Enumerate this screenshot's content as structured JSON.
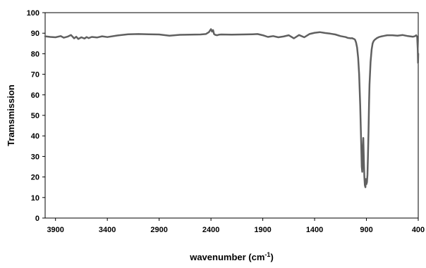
{
  "chart_data": {
    "type": "line",
    "title": "",
    "xlabel": "wavenumber (cm",
    "xlabel_sup": "-1",
    "xlabel_close": ")",
    "ylabel": "Tramsmission",
    "xlim": [
      4000,
      400
    ],
    "x_reversed": true,
    "ylim": [
      0,
      100
    ],
    "x_ticks": [
      3900,
      3400,
      2900,
      2400,
      1900,
      1400,
      900,
      400
    ],
    "y_ticks": [
      0,
      10,
      20,
      30,
      40,
      50,
      60,
      70,
      80,
      90,
      100
    ],
    "grid": false,
    "legend": "none",
    "line_color": "#606060",
    "series": [
      {
        "x": [
          4000,
          3950,
          3900,
          3850,
          3820,
          3780,
          3750,
          3720,
          3700,
          3680,
          3650,
          3620,
          3600,
          3580,
          3550,
          3500,
          3450,
          3400,
          3300,
          3200,
          3100,
          3000,
          2900,
          2800,
          2700,
          2600,
          2500,
          2450,
          2420,
          2400,
          2390,
          2380,
          2370,
          2360,
          2340,
          2320,
          2300,
          2200,
          2100,
          2000,
          1950,
          1900,
          1850,
          1800,
          1750,
          1700,
          1650,
          1600,
          1550,
          1500,
          1450,
          1400,
          1350,
          1300,
          1250,
          1200,
          1150,
          1100,
          1080,
          1060,
          1050,
          1040,
          1030,
          1020,
          1010,
          1000,
          990,
          980,
          970,
          960,
          950,
          945,
          940,
          935,
          930,
          925,
          920,
          915,
          910,
          905,
          900,
          895,
          890,
          885,
          880,
          875,
          870,
          860,
          850,
          840,
          830,
          820,
          810,
          800,
          780,
          760,
          740,
          720,
          700,
          650,
          600,
          550,
          500,
          450,
          430,
          420,
          410,
          405,
          402,
          400
        ],
        "y": [
          88.5,
          88.2,
          88.0,
          88.6,
          87.8,
          88.4,
          89.1,
          87.5,
          88.3,
          87.2,
          88.0,
          87.4,
          88.1,
          87.6,
          88.2,
          87.9,
          88.5,
          88.1,
          88.9,
          89.5,
          89.6,
          89.5,
          89.4,
          88.8,
          89.2,
          89.3,
          89.4,
          89.6,
          90.5,
          92.0,
          90.8,
          91.5,
          89.6,
          89.2,
          89.0,
          89.3,
          89.4,
          89.3,
          89.4,
          89.5,
          89.6,
          89.0,
          88.2,
          88.6,
          88.0,
          88.4,
          89.0,
          87.5,
          89.1,
          88.0,
          89.6,
          90.2,
          90.5,
          90.1,
          89.8,
          89.4,
          88.6,
          88.1,
          87.7,
          87.6,
          87.5,
          87.6,
          87.4,
          87.2,
          86.8,
          85.5,
          83.0,
          78.0,
          70.0,
          55.0,
          35.0,
          25.0,
          22.5,
          33.0,
          39.0,
          28.0,
          20.0,
          16.0,
          15.0,
          19.0,
          16.5,
          17.5,
          21.0,
          30.0,
          42.0,
          55.0,
          65.0,
          76.0,
          82.0,
          85.0,
          86.2,
          86.8,
          87.2,
          87.6,
          88.1,
          88.4,
          88.6,
          88.8,
          89.0,
          89.0,
          88.8,
          89.1,
          88.6,
          88.3,
          88.6,
          89.0,
          88.2,
          82.0,
          75.5,
          80.0
        ]
      }
    ]
  }
}
